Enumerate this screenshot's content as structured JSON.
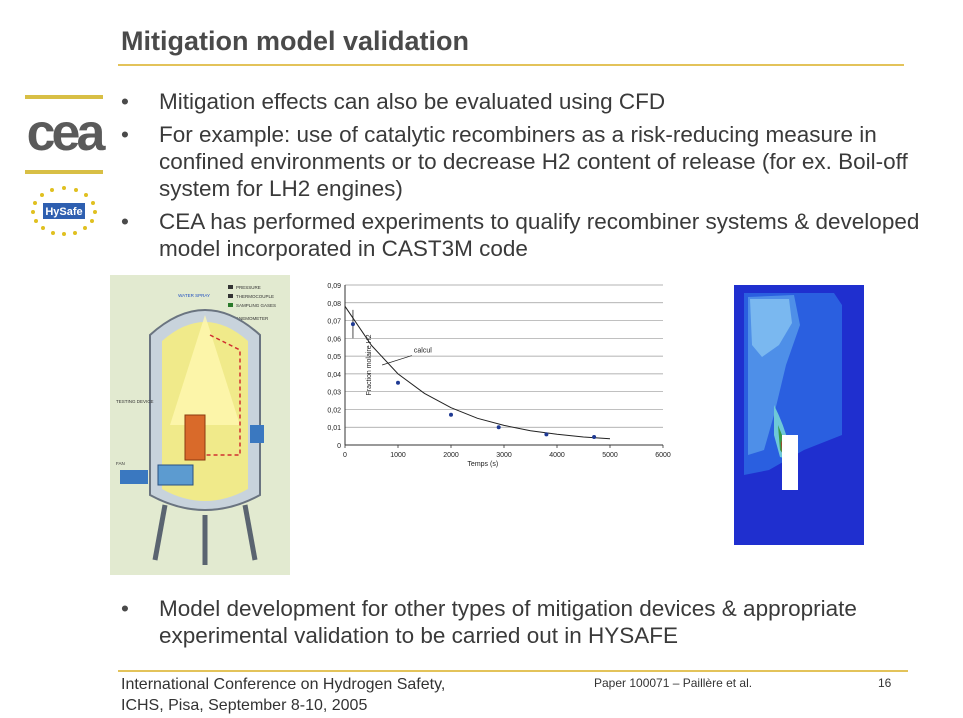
{
  "slide": {
    "title": "Mitigation model validation",
    "bullets": [
      "Mitigation effects can also be evaluated using CFD",
      "For example: use of catalytic recombiners as a risk-reducing measure in confined environments or to decrease H2 content of release (for ex. Boil-off system for LH2 engines)",
      "CEA has performed experiments to qualify recombiner systems & developed model incorporated in CAST3M code"
    ],
    "bottom_bullet": "Model development for other types of mitigation devices & appropriate experimental validation to be carried out in HYSAFE",
    "footer": {
      "conference_line1": "International Conference on Hydrogen Safety,",
      "conference_line2": "ICHS, Pisa, September 8-10, 2005",
      "paper": "Paper 100071 – Paillère et al.",
      "page": "16"
    }
  },
  "logos": {
    "cea": "cea",
    "hysafe": "HySafe"
  },
  "vessel_legend": [
    "PRESSURE",
    "THERMOCOUPLE",
    "SAMPLING GASES",
    "ANEMOMETER"
  ],
  "vessel_labels": [
    "WATER SPRAY",
    "TESTING DEVICE",
    "FAN"
  ],
  "chart_data": {
    "type": "scatter",
    "xlabel": "Temps (s)",
    "ylabel": "Fraction molaire H2",
    "x_ticks": [
      "0",
      "1000",
      "2000",
      "3000",
      "4000",
      "5000",
      "6000"
    ],
    "y_ticks": [
      "0",
      "0,01",
      "0,02",
      "0,03",
      "0,04",
      "0,05",
      "0,06",
      "0,07",
      "0,08",
      "0,09"
    ],
    "xlim": [
      0,
      6000
    ],
    "ylim": [
      0,
      0.09
    ],
    "grid": true,
    "annotation": "calcul",
    "points": [
      {
        "x": 150,
        "y": 0.068
      },
      {
        "x": 1000,
        "y": 0.035
      },
      {
        "x": 2000,
        "y": 0.017
      },
      {
        "x": 2900,
        "y": 0.01
      },
      {
        "x": 3800,
        "y": 0.006
      },
      {
        "x": 4700,
        "y": 0.0045
      }
    ],
    "curve": [
      {
        "x": 0,
        "y": 0.078
      },
      {
        "x": 500,
        "y": 0.056
      },
      {
        "x": 1000,
        "y": 0.04
      },
      {
        "x": 1500,
        "y": 0.029
      },
      {
        "x": 2000,
        "y": 0.021
      },
      {
        "x": 2500,
        "y": 0.015
      },
      {
        "x": 3000,
        "y": 0.011
      },
      {
        "x": 3500,
        "y": 0.008
      },
      {
        "x": 4000,
        "y": 0.006
      },
      {
        "x": 4500,
        "y": 0.0045
      },
      {
        "x": 5000,
        "y": 0.0035
      }
    ],
    "colors": {
      "points": "#1f3a93",
      "curve": "#222222"
    }
  }
}
